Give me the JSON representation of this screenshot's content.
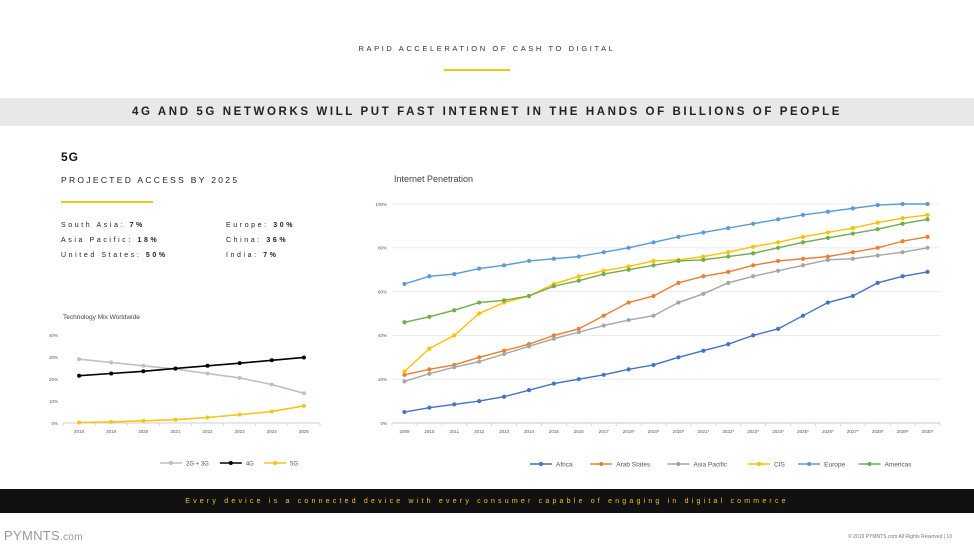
{
  "header": {
    "eyebrow": "RAPID ACCELERATION OF CASH TO DIGITAL",
    "banner": "4G AND 5G NETWORKS WILL PUT FAST INTERNET IN THE HANDS OF BILLIONS OF PEOPLE"
  },
  "left": {
    "tech": "5G",
    "projected": "PROJECTED ACCESS BY 2025",
    "stats": [
      {
        "label": "South Asia:",
        "value": "7%"
      },
      {
        "label": "Europe:",
        "value": "30%"
      },
      {
        "label": "Asia Pacific:",
        "value": "18%"
      },
      {
        "label": "China:",
        "value": "36%"
      },
      {
        "label": "United States:",
        "value": "50%"
      },
      {
        "label": "India:",
        "value": "7%"
      }
    ]
  },
  "footer": {
    "tagline": "Every device is a connected device with every consumer capable of engaging in digital commerce",
    "brand": "PYMNTS",
    "brand_suffix": ".com",
    "copyright": "© 2019 PYMNTS.com All Rights Reserved  |  10"
  },
  "colors": {
    "accent": "#f5c518",
    "banner_bg": "#e8e8e8",
    "footer_bg": "#111111"
  },
  "chart_data": [
    {
      "type": "line",
      "title": "Technology Mix Worldwide",
      "categories": [
        "2018",
        "2019",
        "2020",
        "2021",
        "2022",
        "2023",
        "2024",
        "2025"
      ],
      "ylim": [
        0,
        40
      ],
      "ytick_labels": [
        "0%",
        "10%",
        "20%",
        "30%",
        "40%"
      ],
      "legend_position": "bottom",
      "series": [
        {
          "name": "2G + 3G",
          "color": "#bfbfbf",
          "values": [
            29,
            27.5,
            26,
            24.5,
            22.5,
            20.5,
            17.5,
            13.5
          ]
        },
        {
          "name": "4G",
          "color": "#000000",
          "values": [
            21.5,
            22.5,
            23.5,
            24.8,
            26,
            27.2,
            28.5,
            29.8
          ]
        },
        {
          "name": "5G",
          "color": "#f5c518",
          "values": [
            0.2,
            0.5,
            1,
            1.5,
            2.5,
            3.8,
            5.2,
            7.8
          ]
        }
      ]
    },
    {
      "type": "line",
      "title": "Internet Penetration",
      "categories": [
        "2009",
        "2010",
        "2011",
        "2012",
        "2013",
        "2014",
        "2015",
        "2016",
        "2017",
        "2018*",
        "2019*",
        "2020*",
        "2021*",
        "2022*",
        "2023*",
        "2024*",
        "2025*",
        "2026*",
        "2027*",
        "2028*",
        "2029*",
        "2030*"
      ],
      "ylim": [
        0,
        100
      ],
      "ytick_labels": [
        "0%",
        "20%",
        "40%",
        "60%",
        "80%",
        "100%"
      ],
      "legend_position": "bottom",
      "series": [
        {
          "name": "Africa",
          "color": "#4472c4",
          "values": [
            5,
            7,
            8.5,
            10,
            12,
            15,
            18,
            20,
            22,
            24.5,
            26.5,
            30,
            33,
            36,
            40,
            43,
            49,
            55,
            58,
            64,
            67,
            69
          ]
        },
        {
          "name": "Arab States",
          "color": "#ed7d31",
          "values": [
            22,
            24.5,
            26.5,
            30,
            33,
            36,
            40,
            43,
            49,
            55,
            58,
            64,
            67,
            69,
            72,
            74,
            75,
            76,
            78,
            80,
            83,
            85
          ]
        },
        {
          "name": "Asia Pacific",
          "color": "#a5a5a5",
          "values": [
            19,
            22.5,
            25.5,
            28,
            31.5,
            35,
            38.5,
            41.5,
            44.5,
            47,
            49,
            55,
            59,
            64,
            67,
            69.5,
            72,
            74.5,
            75,
            76.5,
            78,
            80
          ]
        },
        {
          "name": "CIS",
          "color": "#ffc000",
          "values": [
            23.5,
            34,
            40,
            50,
            55,
            58,
            63.5,
            67,
            69.5,
            71.5,
            74,
            74.5,
            76,
            78,
            80.5,
            82.5,
            85,
            87,
            89,
            91.5,
            93.5,
            95
          ]
        },
        {
          "name": "Europe",
          "color": "#5b9bd5",
          "values": [
            63.5,
            67,
            68,
            70.5,
            72,
            74,
            75,
            76,
            78,
            80,
            82.5,
            85,
            87,
            89,
            91,
            93,
            95,
            96.5,
            98,
            99.5,
            100,
            100
          ]
        },
        {
          "name": "Americas",
          "color": "#70ad47",
          "values": [
            46,
            48.5,
            51.5,
            55,
            56,
            58,
            62.5,
            65,
            68,
            70,
            72,
            74,
            74.5,
            76,
            77.5,
            80,
            82.5,
            84.5,
            86.5,
            88.5,
            91,
            93
          ]
        }
      ]
    }
  ]
}
